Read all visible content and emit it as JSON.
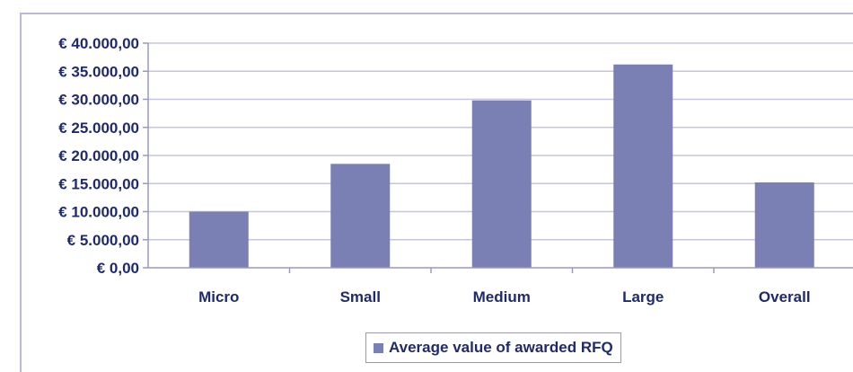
{
  "chart_data": {
    "type": "bar",
    "categories": [
      "Micro",
      "Small",
      "Medium",
      "Large",
      "Overall"
    ],
    "series": [
      {
        "name": "Average value of awarded RFQ",
        "values": [
          10000,
          18500,
          29800,
          36200,
          15200
        ]
      }
    ],
    "yticks": [
      0,
      5000,
      10000,
      15000,
      20000,
      25000,
      30000,
      35000,
      40000
    ],
    "ytick_labels": [
      "€ 0,00",
      "€ 5.000,00",
      "€ 10.000,00",
      "€ 15.000,00",
      "€ 20.000,00",
      "€ 25.000,00",
      "€ 30.000,00",
      "€ 35.000,00",
      "€ 40.000,00"
    ],
    "ylim": [
      0,
      40000
    ],
    "grid": true,
    "legend_position": "bottom",
    "bar_color": "#7a80b3",
    "axis_color": "#9a9ac0",
    "grid_color": "#c5c5df",
    "label_color": "#1f2a6e"
  }
}
